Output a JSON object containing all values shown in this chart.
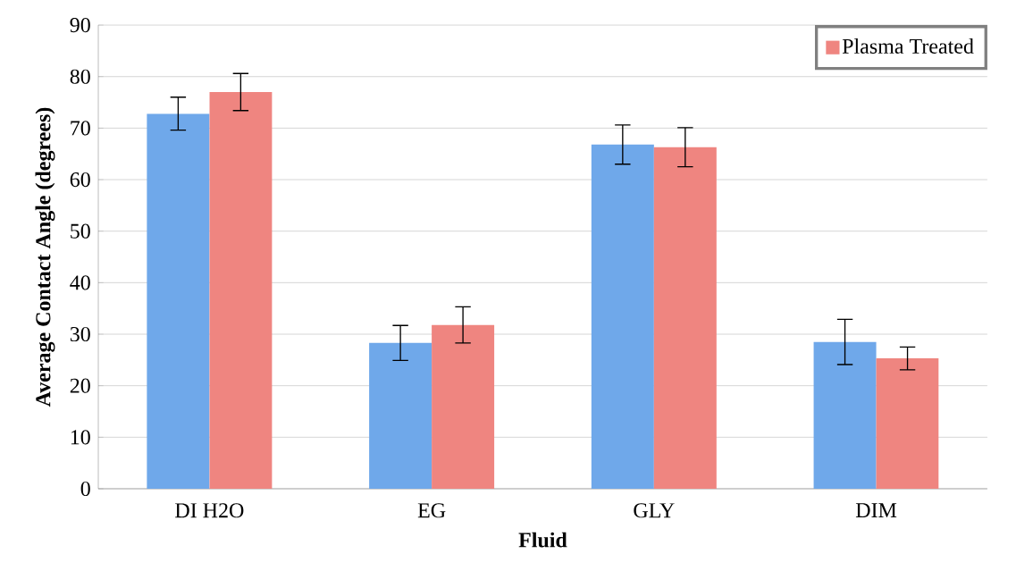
{
  "chart_data": {
    "type": "bar",
    "xlabel": "Fluid",
    "ylabel": "Average Contact Angle (degrees)",
    "categories": [
      "DI H2O",
      "EG",
      "GLY",
      "DIM"
    ],
    "series": [
      {
        "color": "#6fa8ea",
        "values": [
          72.8,
          28.3,
          66.8,
          28.5
        ],
        "errors": [
          3.2,
          3.4,
          3.8,
          4.4
        ]
      },
      {
        "name": "Plasma Treated",
        "color": "#ef8580",
        "values": [
          77,
          31.8,
          66.3,
          25.3
        ],
        "errors": [
          3.6,
          3.5,
          3.8,
          2.2
        ]
      }
    ],
    "ylim": [
      0,
      90
    ],
    "yticks": [
      0,
      10,
      20,
      30,
      40,
      50,
      60,
      70,
      80,
      90
    ],
    "grid": "y",
    "legend": "top right"
  }
}
